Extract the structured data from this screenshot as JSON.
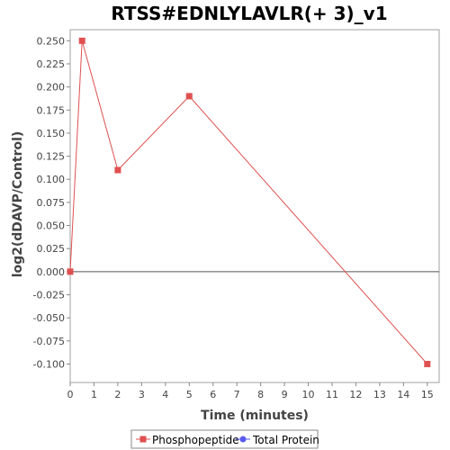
{
  "chart_data": {
    "type": "line",
    "title": "RTSS#EDNLYLAVLR(+ 3)_v1",
    "xlabel": "Time (minutes)",
    "ylabel": "log2(dDAVP/Control)",
    "xlim": [
      0,
      15.5
    ],
    "ylim": [
      -0.12,
      0.262
    ],
    "x_ticks": [
      0,
      1,
      2,
      3,
      4,
      5,
      6,
      7,
      8,
      9,
      10,
      11,
      12,
      13,
      14,
      15
    ],
    "x_tick_labels": [
      "0",
      "1",
      "2",
      "3",
      "4",
      "5",
      "6",
      "7",
      "8",
      "9",
      "10",
      "11",
      "12",
      "13",
      "14",
      "15"
    ],
    "y_ticks": [
      -0.1,
      -0.075,
      -0.05,
      -0.025,
      0,
      0.025,
      0.05,
      0.075,
      0.1,
      0.125,
      0.15,
      0.175,
      0.2,
      0.225,
      0.25
    ],
    "y_tick_labels": [
      "-0.100",
      "-0.075",
      "-0.050",
      "-0.025",
      "0.000",
      "0.025",
      "0.050",
      "0.075",
      "0.100",
      "0.125",
      "0.150",
      "0.175",
      "0.200",
      "0.225",
      "0.250"
    ],
    "grid": false,
    "zero_line": true,
    "series": [
      {
        "name": "Phosphopeptide",
        "color": "#e05050",
        "marker": "square",
        "x": [
          0,
          0.5,
          2,
          5,
          15
        ],
        "y": [
          0.0,
          0.25,
          0.11,
          0.19,
          -0.1
        ]
      },
      {
        "name": "Total Protein",
        "color": "#5a5aee",
        "marker": "circle",
        "x": [],
        "y": []
      }
    ],
    "legend_position": "bottom-center"
  }
}
